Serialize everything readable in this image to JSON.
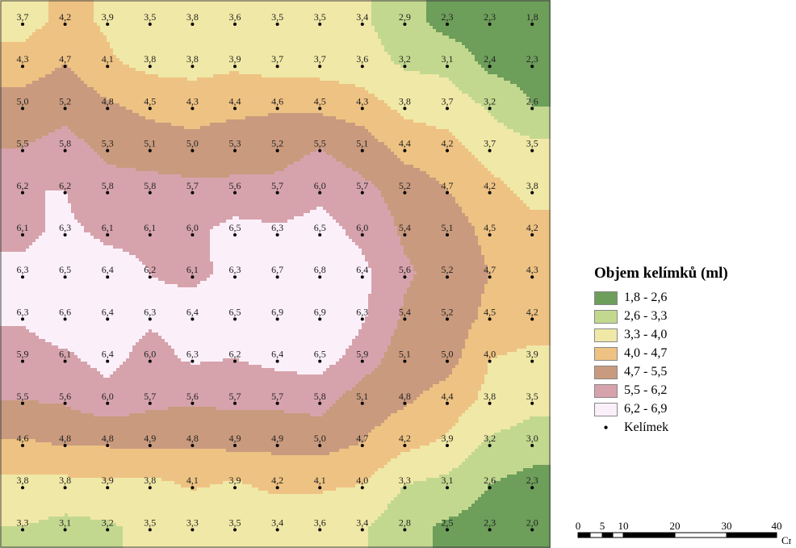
{
  "legend": {
    "title": "Objem kelímků (ml)",
    "classes": [
      {
        "label": "1,8 - 2,6",
        "min": 1.8,
        "max": 2.6,
        "color": "#6d9e5a"
      },
      {
        "label": "2,6 - 3,3",
        "min": 2.6,
        "max": 3.3,
        "color": "#c3d88f"
      },
      {
        "label": "3,3 - 4,0",
        "min": 3.3,
        "max": 4.0,
        "color": "#f0e8a6"
      },
      {
        "label": "4,0 - 4,7",
        "min": 4.0,
        "max": 4.7,
        "color": "#eec283"
      },
      {
        "label": "4,7 - 5,5",
        "min": 4.7,
        "max": 5.5,
        "color": "#c99a7e"
      },
      {
        "label": "5,5 - 6,2",
        "min": 5.5,
        "max": 6.2,
        "color": "#d6a3ac"
      },
      {
        "label": "6,2 - 6,9",
        "min": 6.2,
        "max": 6.9,
        "color": "#fbf0fa"
      }
    ],
    "point_label": "Kelímek"
  },
  "scale": {
    "ticks": [
      "0",
      "5",
      "10",
      "20",
      "30",
      "40"
    ],
    "unit": "Cm"
  },
  "grid": {
    "values": [
      [
        "3,7",
        "4,2",
        "3,9",
        "3,5",
        "3,8",
        "3,6",
        "3,5",
        "3,5",
        "3,4",
        "2,9",
        "2,3",
        "2,3",
        "1,8"
      ],
      [
        "4,3",
        "4,7",
        "4,1",
        "3,8",
        "3,8",
        "3,9",
        "3,7",
        "3,7",
        "3,6",
        "3,2",
        "3,1",
        "2,4",
        "2,3"
      ],
      [
        "5,0",
        "5,2",
        "4,8",
        "4,5",
        "4,3",
        "4,4",
        "4,6",
        "4,5",
        "4,3",
        "3,8",
        "3,7",
        "3,2",
        "2,6"
      ],
      [
        "5,5",
        "5,8",
        "5,3",
        "5,1",
        "5,0",
        "5,3",
        "5,2",
        "5,5",
        "5,1",
        "4,4",
        "4,2",
        "3,7",
        "3,5"
      ],
      [
        "6,2",
        "6,2",
        "5,8",
        "5,8",
        "5,7",
        "5,6",
        "5,7",
        "6,0",
        "5,7",
        "5,2",
        "4,7",
        "4,2",
        "3,8"
      ],
      [
        "6,1",
        "6,3",
        "6,1",
        "6,1",
        "6,0",
        "6,5",
        "6,3",
        "6,5",
        "6,0",
        "5,4",
        "5,1",
        "4,5",
        "4,2"
      ],
      [
        "6,3",
        "6,5",
        "6,4",
        "6,2",
        "6,1",
        "6,3",
        "6,7",
        "6,8",
        "6,4",
        "5,6",
        "5,2",
        "4,7",
        "4,3"
      ],
      [
        "6,3",
        "6,6",
        "6,4",
        "6,3",
        "6,4",
        "6,5",
        "6,9",
        "6,9",
        "6,3",
        "5,4",
        "5,2",
        "4,5",
        "4,2"
      ],
      [
        "5,9",
        "6,1",
        "6,4",
        "6,0",
        "6,3",
        "6,2",
        "6,4",
        "6,5",
        "5,9",
        "5,1",
        "5,0",
        "4,0",
        "3,9"
      ],
      [
        "5,5",
        "5,6",
        "6,0",
        "5,7",
        "5,6",
        "5,7",
        "5,7",
        "5,8",
        "5,1",
        "4,8",
        "4,4",
        "3,8",
        "3,5"
      ],
      [
        "4,6",
        "4,8",
        "4,8",
        "4,9",
        "4,8",
        "4,9",
        "4,9",
        "5,0",
        "4,7",
        "4,2",
        "3,9",
        "3,2",
        "3,0"
      ],
      [
        "3,8",
        "3,8",
        "3,9",
        "3,8",
        "4,1",
        "3,9",
        "4,2",
        "4,1",
        "4,0",
        "3,3",
        "3,1",
        "2,6",
        "2,3"
      ],
      [
        "3,3",
        "3,1",
        "3,2",
        "3,5",
        "3,3",
        "3,5",
        "3,4",
        "3,6",
        "3,4",
        "2,8",
        "2,5",
        "2,3",
        "2,0"
      ]
    ]
  }
}
